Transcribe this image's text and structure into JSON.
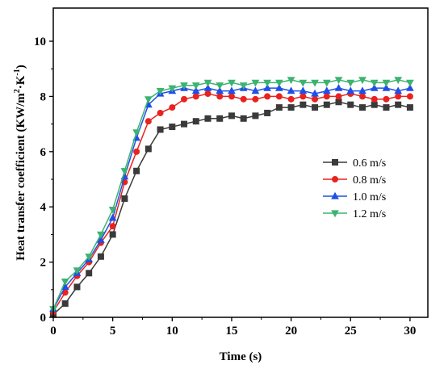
{
  "chart_data": {
    "type": "line",
    "title": "",
    "xlabel": "Time (s)",
    "ylabel": {
      "base": "Heat transfer coefficient (KW/m",
      "exp1": "2",
      "mid": "·K",
      "exp2": "-1",
      "end": ")"
    },
    "xlim": [
      0,
      31.5
    ],
    "ylim": [
      0,
      11.2
    ],
    "xticks": [
      0,
      5,
      10,
      15,
      20,
      25,
      30
    ],
    "yticks": [
      0,
      2,
      4,
      6,
      8,
      10
    ],
    "x": [
      0,
      1,
      2,
      3,
      4,
      5,
      6,
      7,
      8,
      9,
      10,
      11,
      12,
      13,
      14,
      15,
      16,
      17,
      18,
      19,
      20,
      21,
      22,
      23,
      24,
      25,
      26,
      27,
      28,
      29,
      30
    ],
    "series": [
      {
        "name": "0.6 m/s",
        "color": "#3a3a3a",
        "marker": "square",
        "values": [
          0.1,
          0.5,
          1.1,
          1.6,
          2.2,
          3.0,
          4.3,
          5.3,
          6.1,
          6.8,
          6.9,
          7.0,
          7.1,
          7.2,
          7.2,
          7.3,
          7.2,
          7.3,
          7.4,
          7.6,
          7.6,
          7.7,
          7.6,
          7.7,
          7.8,
          7.7,
          7.6,
          7.7,
          7.6,
          7.7,
          7.6
        ]
      },
      {
        "name": "0.8 m/s",
        "color": "#e8231f",
        "marker": "circle",
        "values": [
          0.2,
          0.9,
          1.5,
          2.0,
          2.7,
          3.3,
          4.9,
          6.0,
          7.1,
          7.4,
          7.6,
          7.9,
          8.0,
          8.1,
          8.0,
          8.0,
          7.9,
          7.9,
          8.0,
          8.0,
          7.9,
          8.0,
          7.9,
          8.0,
          8.0,
          8.1,
          8.0,
          7.9,
          7.9,
          8.0,
          8.0
        ]
      },
      {
        "name": "1.0 m/s",
        "color": "#1f4fe6",
        "marker": "triangle-up",
        "values": [
          0.3,
          1.1,
          1.6,
          2.1,
          2.8,
          3.6,
          5.1,
          6.5,
          7.7,
          8.1,
          8.2,
          8.3,
          8.2,
          8.3,
          8.2,
          8.2,
          8.3,
          8.2,
          8.3,
          8.3,
          8.2,
          8.2,
          8.1,
          8.2,
          8.3,
          8.2,
          8.2,
          8.3,
          8.3,
          8.2,
          8.3
        ]
      },
      {
        "name": "1.2 m/s",
        "color": "#3cb371",
        "marker": "triangle-down",
        "values": [
          0.3,
          1.3,
          1.7,
          2.2,
          3.0,
          3.9,
          5.3,
          6.7,
          7.9,
          8.2,
          8.3,
          8.4,
          8.4,
          8.5,
          8.4,
          8.5,
          8.4,
          8.5,
          8.5,
          8.5,
          8.6,
          8.5,
          8.5,
          8.5,
          8.6,
          8.5,
          8.6,
          8.5,
          8.5,
          8.6,
          8.5
        ]
      }
    ],
    "legend_position": "center-right",
    "grid": false
  }
}
